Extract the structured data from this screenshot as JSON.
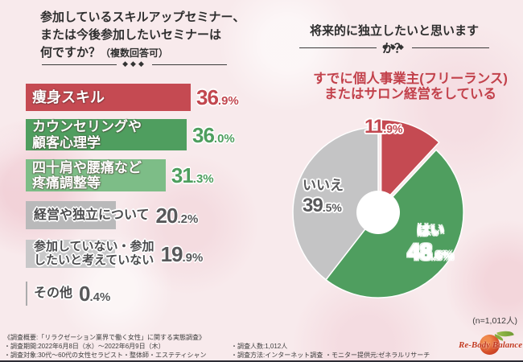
{
  "ui": {
    "diamonds": "◆◆◆"
  },
  "chart_data": [
    {
      "type": "bar",
      "orientation": "horizontal",
      "title": "参加しているスキルアップセミナー、または今後参加したいセミナーは何ですか？（複数回答可）",
      "title_lines": [
        "参加しているスキルアップセミナー、",
        "または今後参加したいセミナーは",
        "何ですか？"
      ],
      "title_note": "（複数回答可）",
      "unit": "%",
      "categories": [
        "痩身スキル",
        "カウンセリングや\n顧客心理学",
        "四十肩や腰痛など\n疼痛調整等",
        "経営や独立について",
        "参加していない・参加\nしたいと考えていない",
        "その他"
      ],
      "values": [
        36.9,
        36.0,
        31.3,
        20.2,
        19.9,
        0.4
      ],
      "bar_colors": [
        "#c54a52",
        "#4f9e5f",
        "#7dbd87",
        "#b9b9ba",
        "#c8c8c9",
        "#ababac"
      ],
      "value_colors": [
        "#c2474f",
        "#4e9e5e",
        "#4e9e5e",
        "#58585a",
        "#58585a",
        "#58585a"
      ],
      "xlim": [
        0,
        40
      ],
      "grid": false
    },
    {
      "type": "pie",
      "title": "将来的に独立したいと思いますか？",
      "slices": [
        {
          "label": "すでに個人事業主(フリーランス)またはサロン経営をしている",
          "label_lines": [
            "すでに個人事業主(フリーランス)",
            "またはサロン経営をしている"
          ],
          "value": 11.9,
          "color": "#c54a52",
          "exploded": true
        },
        {
          "label": "はい",
          "value": 48.6,
          "color": "#4f9e5f",
          "exploded": false
        },
        {
          "label": "いいえ",
          "value": 39.5,
          "color": "#c4c4c5",
          "exploded": false
        }
      ],
      "start_angle_deg": 0,
      "clockwise": true,
      "donut": true,
      "legend_position": "on-slices",
      "sample_note": "(n=1,012人)"
    }
  ],
  "footer": {
    "line1": "《調査概要:「リラクゼーション業界で働く女性」に関する実態調査》",
    "line2": "・調査期間:2022年6月8日（水）～2022年6月9日（木）",
    "line3": "・調査対象:30代～60代の女性セラピスト・整体師・エステティシャン",
    "col2_line1": "・調査人数:1,012人",
    "col2_line2": "・調査方法:インターネット調査",
    "col3_line1": "・モニター提供元:ゼネラルリサーチ"
  },
  "logo": {
    "text": "Re-Body Balance"
  },
  "colors": {
    "accent_red": "#c54a52",
    "accent_green": "#4f9e5f",
    "accent_light_green": "#7dbd87",
    "neutral_gray": "#b9b9ba",
    "background": "#f8eaec",
    "footer_rule": "#2c2c34"
  }
}
